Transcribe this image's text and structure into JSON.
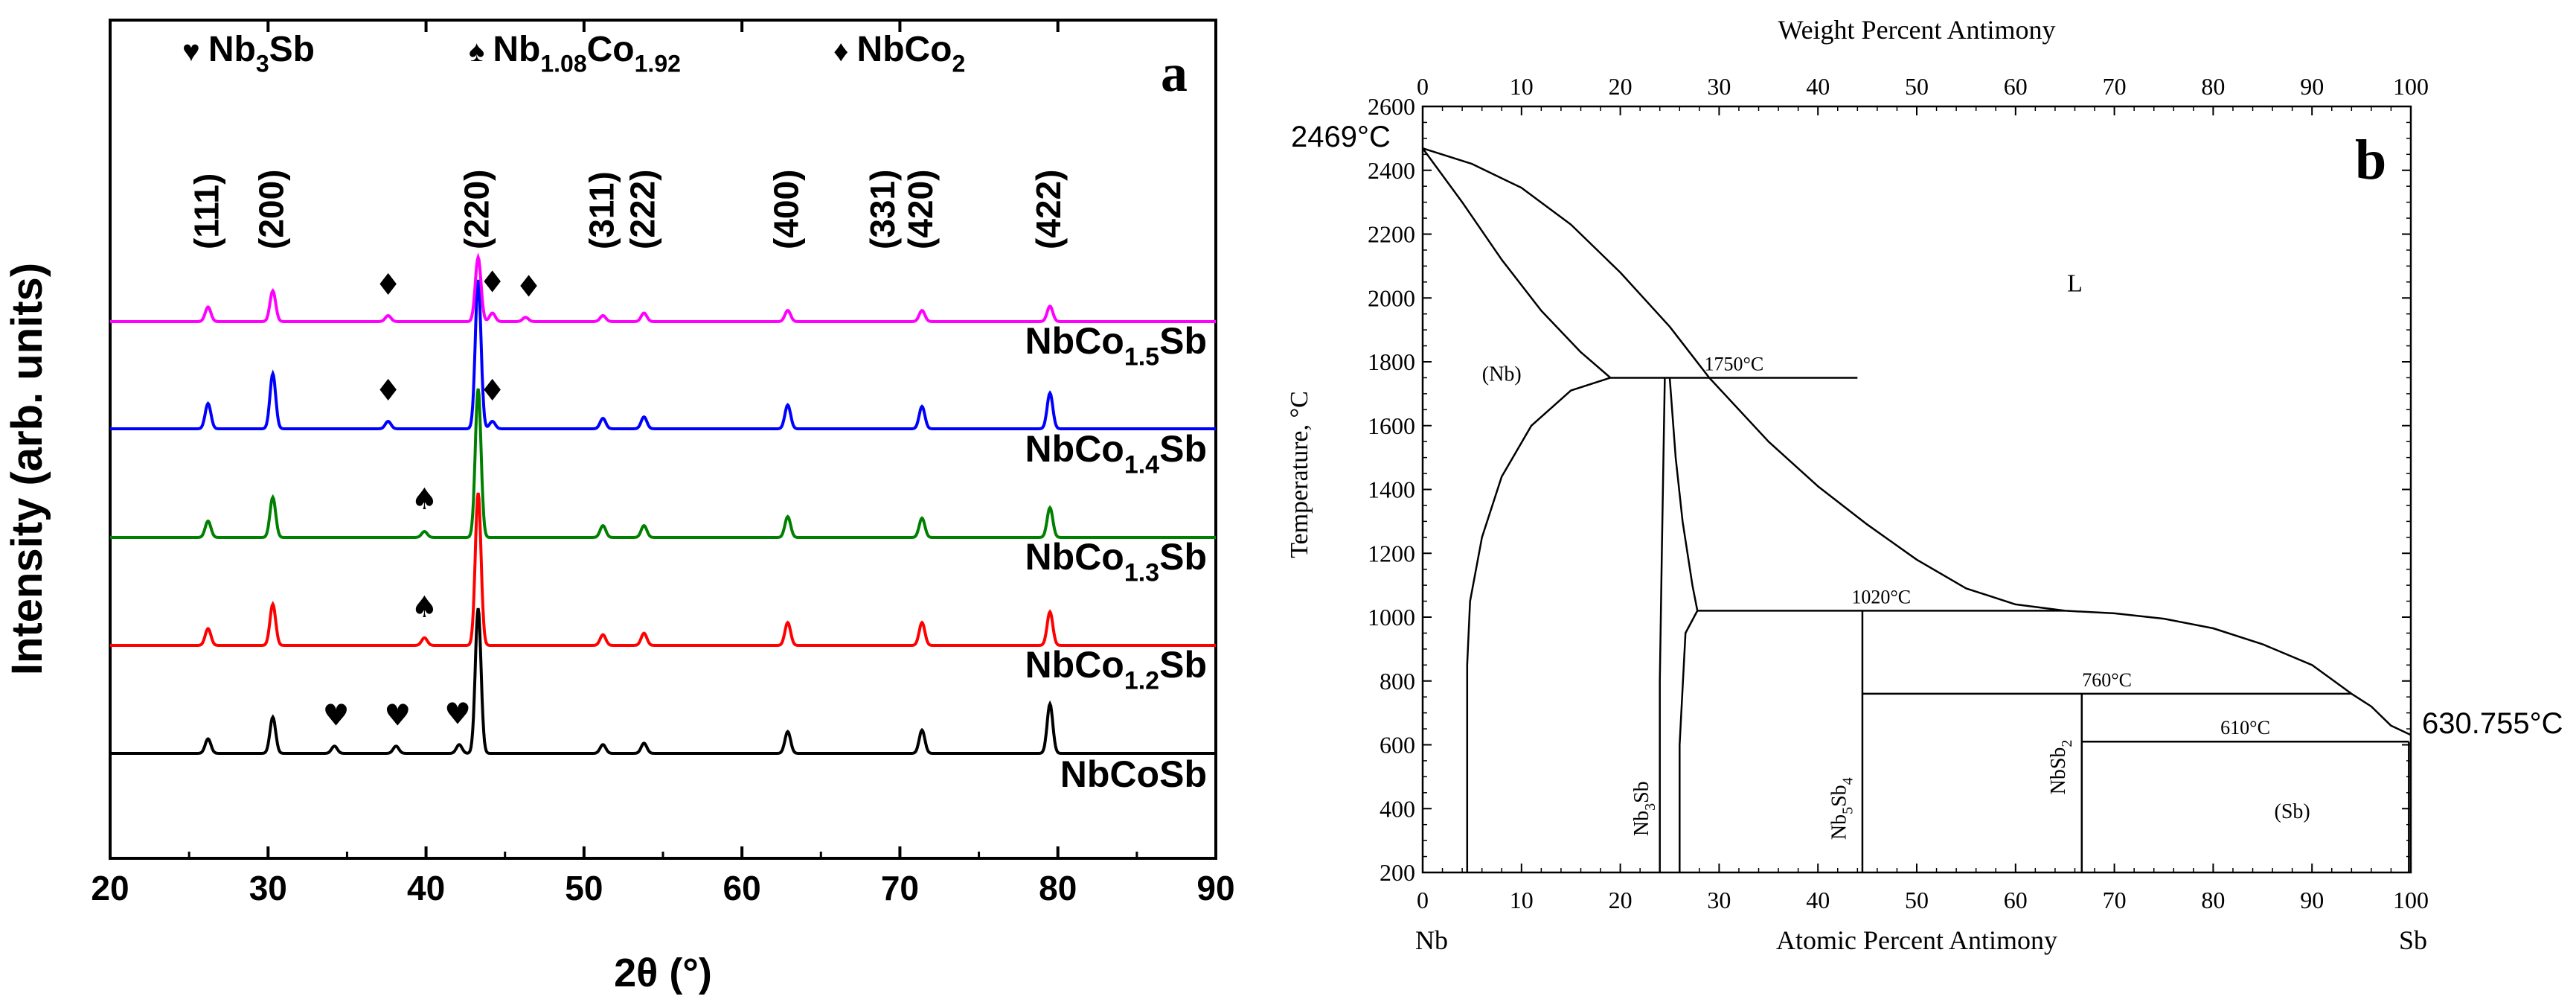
{
  "chart_data": [
    {
      "panel_id": "a",
      "type": "line",
      "title": "",
      "xlabel": "2θ (°)",
      "ylabel": "Intensity (arb. units)",
      "xlim": [
        20,
        90
      ],
      "x_ticks": [
        20,
        30,
        40,
        50,
        60,
        70,
        80,
        90
      ],
      "y_ticks_visible": false,
      "panel_label": "a",
      "legend": [
        {
          "symbol": "♥",
          "phase_base": "Nb",
          "phase_sub": "3",
          "phase_tail": "Sb"
        },
        {
          "symbol": "♠",
          "phase_base": "Nb",
          "phase_sub": "1.08",
          "phase_tail": "Co",
          "phase_sub2": "1.92"
        },
        {
          "symbol": "♦",
          "phase_base": "NbCo",
          "phase_sub": "2",
          "phase_tail": ""
        }
      ],
      "hkl_labels": [
        {
          "hkl": "(111)",
          "x": 26.2
        },
        {
          "hkl": "(200)",
          "x": 30.3
        },
        {
          "hkl": "(220)",
          "x": 43.3
        },
        {
          "hkl": "(311)",
          "x": 51.2
        },
        {
          "hkl": "(222)",
          "x": 53.8
        },
        {
          "hkl": "(400)",
          "x": 62.9
        },
        {
          "hkl": "(331)",
          "x": 69.0
        },
        {
          "hkl": "(420)",
          "x": 71.4
        },
        {
          "hkl": "(422)",
          "x": 79.5
        }
      ],
      "series": [
        {
          "name": "NbCoSb",
          "label_base": "NbCo",
          "label_sub": "",
          "label_tail": "Sb",
          "color": "#000000",
          "peaks": [
            [
              26.2,
              0.1
            ],
            [
              30.3,
              0.25
            ],
            [
              34.2,
              0.05
            ],
            [
              38.1,
              0.05
            ],
            [
              42.1,
              0.06
            ],
            [
              43.3,
              1.0
            ],
            [
              51.2,
              0.06
            ],
            [
              53.8,
              0.07
            ],
            [
              62.9,
              0.15
            ],
            [
              71.4,
              0.16
            ],
            [
              79.5,
              0.34
            ]
          ],
          "markers": [
            {
              "symbol": "♥",
              "x": 34.3
            },
            {
              "symbol": "♥",
              "x": 38.2
            },
            {
              "symbol": "♥",
              "x": 42.0
            }
          ]
        },
        {
          "name": "NbCo1.2Sb",
          "label_base": "NbCo",
          "label_sub": "1.2",
          "label_tail": "Sb",
          "color": "#ff0000",
          "peaks": [
            [
              26.2,
              0.11
            ],
            [
              30.3,
              0.27
            ],
            [
              39.9,
              0.05
            ],
            [
              43.3,
              1.0
            ],
            [
              51.2,
              0.07
            ],
            [
              53.8,
              0.08
            ],
            [
              62.9,
              0.15
            ],
            [
              71.4,
              0.15
            ],
            [
              79.5,
              0.22
            ]
          ],
          "markers": [
            {
              "symbol": "♠",
              "x": 39.9
            }
          ]
        },
        {
          "name": "NbCo1.3Sb",
          "label_base": "NbCo",
          "label_sub": "1.3",
          "label_tail": "Sb",
          "color": "#008000",
          "peaks": [
            [
              26.2,
              0.11
            ],
            [
              30.3,
              0.27
            ],
            [
              39.9,
              0.04
            ],
            [
              43.3,
              1.0
            ],
            [
              51.2,
              0.08
            ],
            [
              53.8,
              0.08
            ],
            [
              62.9,
              0.14
            ],
            [
              71.4,
              0.13
            ],
            [
              79.5,
              0.2
            ]
          ],
          "markers": [
            {
              "symbol": "♠",
              "x": 39.9
            }
          ]
        },
        {
          "name": "NbCo1.4Sb",
          "label_base": "NbCo",
          "label_sub": "1.4",
          "label_tail": "Sb",
          "color": "#0000ff",
          "peaks": [
            [
              26.2,
              0.17
            ],
            [
              30.3,
              0.37
            ],
            [
              37.6,
              0.05
            ],
            [
              43.3,
              1.0
            ],
            [
              44.2,
              0.05
            ],
            [
              51.2,
              0.07
            ],
            [
              53.8,
              0.08
            ],
            [
              62.9,
              0.16
            ],
            [
              71.4,
              0.15
            ],
            [
              79.5,
              0.24
            ]
          ],
          "markers": [
            {
              "symbol": "♦",
              "x": 37.6
            },
            {
              "symbol": "♦",
              "x": 44.2
            }
          ]
        },
        {
          "name": "NbCo1.5Sb",
          "label_base": "NbCo",
          "label_sub": "1.5",
          "label_tail": "Sb",
          "color": "#ff00ff",
          "peaks": [
            [
              26.2,
              0.17
            ],
            [
              30.3,
              0.36
            ],
            [
              37.6,
              0.07
            ],
            [
              43.3,
              0.75
            ],
            [
              44.2,
              0.1
            ],
            [
              46.3,
              0.05
            ],
            [
              51.2,
              0.07
            ],
            [
              53.8,
              0.1
            ],
            [
              62.9,
              0.13
            ],
            [
              71.4,
              0.13
            ],
            [
              79.5,
              0.18
            ]
          ],
          "markers": [
            {
              "symbol": "♦",
              "x": 37.6
            },
            {
              "symbol": "♦",
              "x": 44.2
            },
            {
              "symbol": "♦",
              "x": 46.5
            }
          ]
        }
      ]
    },
    {
      "panel_id": "b",
      "type": "phase-diagram",
      "title": "",
      "xlabel": "Atomic Percent Antimony",
      "x2label": "Weight Percent Antimony",
      "ylabel": "Temperature, °C",
      "xlim": [
        0,
        100
      ],
      "ylim": [
        200,
        2600
      ],
      "x_ticks": [
        0,
        10,
        20,
        30,
        40,
        50,
        60,
        70,
        80,
        90,
        100
      ],
      "x2_ticks": [
        0,
        10,
        20,
        30,
        40,
        50,
        60,
        70,
        80,
        90,
        100
      ],
      "y_ticks": [
        200,
        400,
        600,
        800,
        1000,
        1200,
        1400,
        1600,
        1800,
        2000,
        2200,
        2400,
        2600
      ],
      "panel_label": "b",
      "end_labels": {
        "left": "Nb",
        "right": "Sb"
      },
      "liquidus": [
        [
          0,
          2469
        ],
        [
          5,
          2420
        ],
        [
          10,
          2345
        ],
        [
          15,
          2230
        ],
        [
          20,
          2080
        ],
        [
          25,
          1910
        ],
        [
          29,
          1750
        ],
        [
          35,
          1550
        ],
        [
          40,
          1410
        ],
        [
          45,
          1290
        ],
        [
          50,
          1180
        ],
        [
          55,
          1090
        ],
        [
          60,
          1040
        ],
        [
          65,
          1020
        ],
        [
          70,
          1012
        ],
        [
          75,
          995
        ],
        [
          80,
          965
        ],
        [
          85,
          915
        ],
        [
          90,
          850
        ],
        [
          94,
          760
        ],
        [
          96,
          720
        ],
        [
          98,
          660
        ],
        [
          100,
          631
        ]
      ],
      "nb_solidus": [
        [
          0,
          2469
        ],
        [
          4,
          2300
        ],
        [
          8,
          2120
        ],
        [
          12,
          1960
        ],
        [
          16,
          1830
        ],
        [
          19,
          1750
        ]
      ],
      "nb_solvus": [
        [
          19,
          1750
        ],
        [
          15,
          1710
        ],
        [
          11,
          1600
        ],
        [
          8,
          1440
        ],
        [
          6,
          1250
        ],
        [
          4.8,
          1050
        ],
        [
          4.5,
          850
        ],
        [
          4.5,
          200
        ]
      ],
      "nb3sb_left": [
        [
          24.5,
          1750
        ],
        [
          24.2,
          1200
        ],
        [
          24,
          800
        ],
        [
          24,
          200
        ]
      ],
      "nb3sb_right": [
        [
          25,
          1750
        ],
        [
          25.6,
          1500
        ],
        [
          26.3,
          1300
        ],
        [
          27.3,
          1100
        ],
        [
          27.8,
          1020
        ],
        [
          26.6,
          950
        ],
        [
          26,
          600
        ],
        [
          26,
          200
        ]
      ],
      "horizontal_lines": [
        {
          "label": "1750°C",
          "T": 1750,
          "x1": 19,
          "x2": 44
        },
        {
          "label": "1020°C",
          "T": 1020,
          "x1": 27.8,
          "x2": 65
        },
        {
          "label": "760°C",
          "T": 760,
          "x1": 44.5,
          "x2": 94
        },
        {
          "label": "610°C",
          "T": 610,
          "x1": 66.7,
          "x2": 99.8
        }
      ],
      "vertical_lines": [
        {
          "x": 44.5,
          "T1": 200,
          "T2": 1020
        },
        {
          "x": 66.7,
          "T1": 200,
          "T2": 760
        },
        {
          "x": 99.8,
          "T1": 200,
          "T2": 610
        }
      ],
      "annotations": [
        {
          "text": "2469°C",
          "x": 0,
          "T": 2469
        },
        {
          "text": "630.755°C",
          "x": 100,
          "T": 631
        }
      ],
      "region_labels": [
        {
          "text": "L",
          "x": 66,
          "T": 2020
        },
        {
          "text": "(Nb)",
          "x": 8,
          "T": 1740
        },
        {
          "text": "(Sb)",
          "x": 88,
          "T": 370
        }
      ],
      "compounds": [
        {
          "base": "Nb",
          "sub1": "3",
          "mid": "Sb",
          "sub2": "",
          "x": 22.8,
          "T": 400
        },
        {
          "base": "Nb",
          "sub1": "5",
          "mid": "Sb",
          "sub2": "4",
          "x": 42.8,
          "T": 400
        },
        {
          "base": "NbSb",
          "sub1": "2",
          "mid": "",
          "sub2": "",
          "x": 65.0,
          "T": 530
        }
      ]
    }
  ]
}
